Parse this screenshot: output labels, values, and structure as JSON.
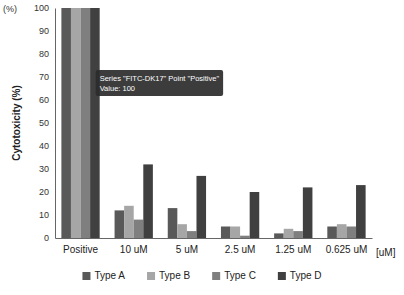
{
  "chart_data": {
    "type": "bar",
    "y_label": "Cytotoxicity (%)",
    "x_label": "[uM]",
    "annotations": [
      "(%)",
      "Series \"FITC-DK17\" Point \"Positive\"",
      "Value: 100"
    ],
    "categories": [
      "Positive",
      "10 uM",
      "5 uM",
      "2.5 uM",
      "1.25 uM",
      "0.625 uM"
    ],
    "series": [
      {
        "name": "Type A",
        "color": "#595959",
        "values": [
          100,
          12,
          13,
          5,
          2,
          5
        ]
      },
      {
        "name": "Type B",
        "color": "#a6a6a6",
        "values": [
          100,
          14,
          6,
          5,
          4,
          6
        ]
      },
      {
        "name": "Type C",
        "color": "#7f7f7f",
        "values": [
          100,
          8,
          3,
          1,
          3,
          5
        ]
      },
      {
        "name": "Type D",
        "color": "#404040",
        "values": [
          100,
          32,
          27,
          20,
          22,
          23
        ]
      }
    ],
    "ylim": [
      0,
      100
    ],
    "yticks": [
      0,
      10,
      20,
      30,
      40,
      50,
      60,
      70,
      80,
      90,
      100
    ],
    "grid": false,
    "legend": "bottom"
  }
}
